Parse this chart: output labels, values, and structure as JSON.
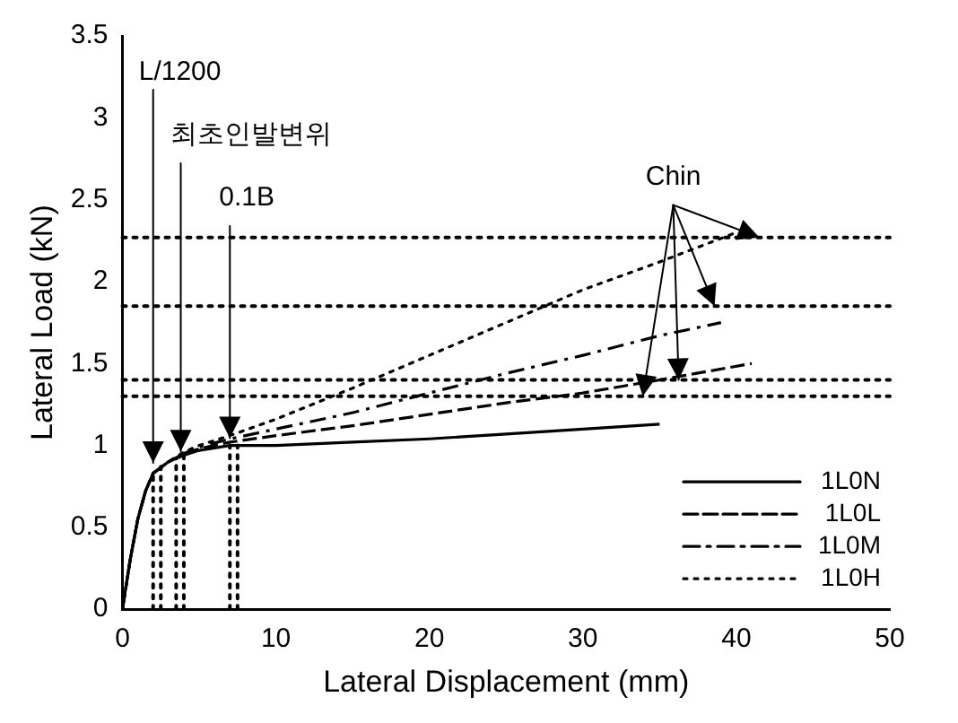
{
  "chart_data": {
    "type": "line",
    "xlabel": "Lateral Displacement (mm)",
    "ylabel": "Lateral Load (kN)",
    "xlim": [
      0,
      50
    ],
    "xticks": [
      0,
      10,
      20,
      30,
      40,
      50
    ],
    "ylim": [
      0,
      3.5
    ],
    "yticks": [
      0,
      0.5,
      1,
      1.5,
      2,
      2.5,
      3,
      3.5
    ],
    "grid": false,
    "legend": "bottom right",
    "marker": "none",
    "series": [
      {
        "name": "1L0N",
        "color": "#000000",
        "line_style": "solid",
        "x": [
          0,
          0.5,
          1,
          1.5,
          2,
          3,
          4,
          5,
          7,
          10,
          15,
          20,
          25,
          30,
          35
        ],
        "values": [
          0,
          0.3,
          0.55,
          0.72,
          0.83,
          0.9,
          0.94,
          0.97,
          1.0,
          1.0,
          1.02,
          1.04,
          1.07,
          1.1,
          1.13
        ]
      },
      {
        "name": "1L0L",
        "color": "#000000",
        "line_style": "dashed",
        "x": [
          0,
          0.5,
          1,
          1.5,
          2,
          3,
          4,
          5,
          7,
          10,
          15,
          20,
          25,
          30,
          35,
          41
        ],
        "values": [
          0,
          0.3,
          0.55,
          0.72,
          0.83,
          0.9,
          0.95,
          0.98,
          1.02,
          1.06,
          1.12,
          1.19,
          1.26,
          1.32,
          1.4,
          1.5
        ]
      },
      {
        "name": "1L0M",
        "color": "#000000",
        "line_style": "dashdot",
        "x": [
          0,
          0.5,
          1,
          1.5,
          2,
          3,
          4,
          5,
          7,
          10,
          15,
          20,
          25,
          30,
          35,
          39
        ],
        "values": [
          0,
          0.3,
          0.55,
          0.72,
          0.83,
          0.9,
          0.95,
          0.99,
          1.04,
          1.1,
          1.2,
          1.32,
          1.44,
          1.55,
          1.67,
          1.75
        ]
      },
      {
        "name": "1L0H",
        "color": "#000000",
        "line_style": "dotted",
        "x": [
          0,
          0.5,
          1,
          1.5,
          2,
          3,
          4,
          5,
          7,
          10,
          15,
          20,
          25,
          30,
          35,
          40
        ],
        "values": [
          0,
          0.3,
          0.55,
          0.72,
          0.83,
          0.9,
          0.96,
          1.0,
          1.06,
          1.16,
          1.35,
          1.55,
          1.75,
          1.95,
          2.12,
          2.3
        ]
      },
      {
        "type": "line",
        "color": "#000000",
        "line_style": "dotted",
        "x": [
          2,
          2
        ],
        "values": [
          0,
          0.85
        ]
      },
      {
        "type": "line",
        "color": "#000000",
        "line_style": "dotted",
        "x": [
          2.5,
          2.5
        ],
        "values": [
          0,
          0.87
        ]
      },
      {
        "type": "line",
        "color": "#000000",
        "line_style": "dotted",
        "x": [
          3.5,
          3.5
        ],
        "values": [
          0,
          0.92
        ]
      },
      {
        "type": "line",
        "color": "#000000",
        "line_style": "dotted",
        "x": [
          4,
          4
        ],
        "values": [
          0,
          0.94
        ]
      },
      {
        "type": "line",
        "color": "#000000",
        "line_style": "dotted",
        "x": [
          7,
          7
        ],
        "values": [
          0,
          1.0
        ]
      },
      {
        "type": "line",
        "color": "#000000",
        "line_style": "dotted",
        "x": [
          7.5,
          7.5
        ],
        "values": [
          0,
          1.0
        ]
      }
    ],
    "ref_lines": [
      {
        "axis": "y",
        "value": 2.27,
        "color": "#000000",
        "line_style": "dotted"
      },
      {
        "axis": "y",
        "value": 1.85,
        "color": "#000000",
        "line_style": "dotted"
      },
      {
        "axis": "y",
        "value": 1.4,
        "color": "#000000",
        "line_style": "dotted"
      },
      {
        "axis": "y",
        "value": 1.3,
        "color": "#000000",
        "line_style": "dotted"
      }
    ],
    "annotations": [
      {
        "text": "L/1200",
        "x": 2,
        "y": 0.85
      },
      {
        "text": "최초인발변위",
        "x": 3.8,
        "y": 0.92
      },
      {
        "text": "0.1B",
        "x": 7,
        "y": 1.0
      },
      {
        "text": "Chin",
        "x": 41.5,
        "y": 2.27
      }
    ]
  }
}
